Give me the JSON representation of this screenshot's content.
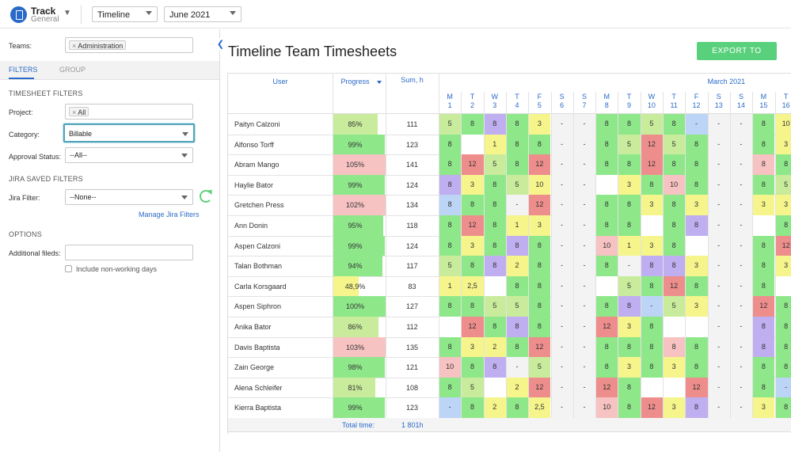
{
  "app": {
    "name": "Track",
    "sub": "General"
  },
  "topbar": {
    "view": "Timeline",
    "month": "June 2021"
  },
  "sidebar": {
    "teams_label": "Teams:",
    "teams_tag": "Administration",
    "tabs": [
      "FILTERS",
      "GROUP"
    ],
    "timesheet_filters": "TIMESHEET FILTERS",
    "project_label": "Project:",
    "project_tag": "All",
    "category_label": "Category:",
    "category_value": "Billable",
    "approval_label": "Approval Status:",
    "approval_value": "--All--",
    "jira_section": "JIRA SAVED FILTERS",
    "jira_label": "Jira Filter:",
    "jira_value": "--None--",
    "manage_link": "Manage Jira Filters",
    "options_section": "OPTIONS",
    "additional_label": "Additional fileds:",
    "include_label": "Include non-working days"
  },
  "main": {
    "title": "Timeline Team Timesheets",
    "export": "EXPORT TO EXCEL",
    "col_user": "User",
    "col_progress": "Progress",
    "col_sum": "Sum, h",
    "month_label": "March 2021",
    "total_label": "Total time:",
    "total_value": "1 801h",
    "days": [
      {
        "d": "M",
        "n": "1"
      },
      {
        "d": "T",
        "n": "2"
      },
      {
        "d": "W",
        "n": "3"
      },
      {
        "d": "T",
        "n": "4"
      },
      {
        "d": "F",
        "n": "5"
      },
      {
        "d": "S",
        "n": "6"
      },
      {
        "d": "S",
        "n": "7"
      },
      {
        "d": "M",
        "n": "8"
      },
      {
        "d": "T",
        "n": "9"
      },
      {
        "d": "W",
        "n": "10"
      },
      {
        "d": "T",
        "n": "11"
      },
      {
        "d": "F",
        "n": "12"
      },
      {
        "d": "S",
        "n": "13"
      },
      {
        "d": "S",
        "n": "14"
      },
      {
        "d": "M",
        "n": "15"
      },
      {
        "d": "T",
        "n": "16"
      }
    ],
    "colors": {
      "g": "#8ee88a",
      "lg": "#c8ec9c",
      "y": "#f5f58c",
      "p": "#bfaef0",
      "r": "#ee8e8c",
      "pk": "#f6c2c2",
      "b": "#bcd4f6",
      "w": "#ffffff",
      "e": "#f3f3f3"
    },
    "rows": [
      {
        "name": "Paityn Calzoni",
        "progress": "85%",
        "pc": "lg",
        "pf": 0.85,
        "sum": "111",
        "cells": [
          [
            "5",
            "lg"
          ],
          [
            "8",
            "g"
          ],
          [
            "8",
            "p"
          ],
          [
            "8",
            "g"
          ],
          [
            "3",
            "y"
          ],
          [
            "-",
            "e"
          ],
          [
            "-",
            "e"
          ],
          [
            "8",
            "g"
          ],
          [
            "8",
            "g"
          ],
          [
            "5",
            "lg"
          ],
          [
            "8",
            "g"
          ],
          [
            "-",
            "b"
          ],
          [
            "-",
            "e"
          ],
          [
            "-",
            "e"
          ],
          [
            "8",
            "g"
          ],
          [
            "10",
            "y"
          ]
        ]
      },
      {
        "name": "Alfonso Torff",
        "progress": "99%",
        "pc": "g",
        "pf": 0.99,
        "sum": "123",
        "cells": [
          [
            "8",
            "g"
          ],
          [
            "",
            "w"
          ],
          [
            "1",
            "y"
          ],
          [
            "8",
            "g"
          ],
          [
            "8",
            "g"
          ],
          [
            "-",
            "e"
          ],
          [
            "-",
            "e"
          ],
          [
            "8",
            "g"
          ],
          [
            "5",
            "lg"
          ],
          [
            "12",
            "r"
          ],
          [
            "5",
            "lg"
          ],
          [
            "8",
            "g"
          ],
          [
            "-",
            "e"
          ],
          [
            "-",
            "e"
          ],
          [
            "8",
            "g"
          ],
          [
            "3",
            "y"
          ]
        ]
      },
      {
        "name": "Abram Mango",
        "progress": "105%",
        "pc": "pk",
        "pf": 1,
        "sum": "141",
        "cells": [
          [
            "8",
            "g"
          ],
          [
            "12",
            "r"
          ],
          [
            "5",
            "lg"
          ],
          [
            "8",
            "g"
          ],
          [
            "12",
            "r"
          ],
          [
            "-",
            "e"
          ],
          [
            "-",
            "e"
          ],
          [
            "8",
            "g"
          ],
          [
            "8",
            "g"
          ],
          [
            "12",
            "r"
          ],
          [
            "8",
            "g"
          ],
          [
            "8",
            "g"
          ],
          [
            "-",
            "e"
          ],
          [
            "-",
            "e"
          ],
          [
            "8",
            "pk"
          ],
          [
            "8",
            "g"
          ]
        ]
      },
      {
        "name": "Haylie Bator",
        "progress": "99%",
        "pc": "g",
        "pf": 0.99,
        "sum": "124",
        "cells": [
          [
            "8",
            "p"
          ],
          [
            "3",
            "y"
          ],
          [
            "8",
            "g"
          ],
          [
            "5",
            "lg"
          ],
          [
            "10",
            "y"
          ],
          [
            "-",
            "e"
          ],
          [
            "-",
            "e"
          ],
          [
            "",
            "w"
          ],
          [
            "3",
            "y"
          ],
          [
            "8",
            "g"
          ],
          [
            "10",
            "pk"
          ],
          [
            "8",
            "g"
          ],
          [
            "-",
            "e"
          ],
          [
            "-",
            "e"
          ],
          [
            "8",
            "g"
          ],
          [
            "5",
            "lg"
          ]
        ]
      },
      {
        "name": "Gretchen Press",
        "progress": "102%",
        "pc": "pk",
        "pf": 1,
        "sum": "134",
        "cells": [
          [
            "8",
            "b"
          ],
          [
            "8",
            "g"
          ],
          [
            "8",
            "g"
          ],
          [
            "-",
            "e"
          ],
          [
            "12",
            "r"
          ],
          [
            "-",
            "e"
          ],
          [
            "-",
            "e"
          ],
          [
            "8",
            "g"
          ],
          [
            "8",
            "g"
          ],
          [
            "3",
            "y"
          ],
          [
            "8",
            "g"
          ],
          [
            "3",
            "y"
          ],
          [
            "-",
            "e"
          ],
          [
            "-",
            "e"
          ],
          [
            "3",
            "y"
          ],
          [
            "3",
            "y"
          ]
        ]
      },
      {
        "name": "Ann Donin",
        "progress": "95%",
        "pc": "g",
        "pf": 0.95,
        "sum": "118",
        "cells": [
          [
            "8",
            "g"
          ],
          [
            "12",
            "r"
          ],
          [
            "8",
            "g"
          ],
          [
            "1",
            "y"
          ],
          [
            "3",
            "y"
          ],
          [
            "-",
            "e"
          ],
          [
            "-",
            "e"
          ],
          [
            "8",
            "g"
          ],
          [
            "8",
            "g"
          ],
          [
            "",
            "w"
          ],
          [
            "8",
            "g"
          ],
          [
            "8",
            "p"
          ],
          [
            "-",
            "e"
          ],
          [
            "-",
            "e"
          ],
          [
            "",
            "w"
          ],
          [
            "8",
            "g"
          ]
        ]
      },
      {
        "name": "Aspen Calzoni",
        "progress": "99%",
        "pc": "g",
        "pf": 0.99,
        "sum": "124",
        "cells": [
          [
            "8",
            "g"
          ],
          [
            "3",
            "y"
          ],
          [
            "8",
            "g"
          ],
          [
            "8",
            "p"
          ],
          [
            "8",
            "g"
          ],
          [
            "-",
            "e"
          ],
          [
            "-",
            "e"
          ],
          [
            "10",
            "pk"
          ],
          [
            "1",
            "y"
          ],
          [
            "3",
            "y"
          ],
          [
            "8",
            "g"
          ],
          [
            "",
            "w"
          ],
          [
            "-",
            "e"
          ],
          [
            "-",
            "e"
          ],
          [
            "8",
            "g"
          ],
          [
            "12",
            "r"
          ]
        ]
      },
      {
        "name": "Talan Bothman",
        "progress": "94%",
        "pc": "g",
        "pf": 0.94,
        "sum": "117",
        "cells": [
          [
            "5",
            "lg"
          ],
          [
            "8",
            "g"
          ],
          [
            "8",
            "p"
          ],
          [
            "2",
            "y"
          ],
          [
            "8",
            "g"
          ],
          [
            "-",
            "e"
          ],
          [
            "-",
            "e"
          ],
          [
            "8",
            "g"
          ],
          [
            "-",
            "e"
          ],
          [
            "8",
            "p"
          ],
          [
            "8",
            "p"
          ],
          [
            "3",
            "y"
          ],
          [
            "-",
            "e"
          ],
          [
            "-",
            "e"
          ],
          [
            "8",
            "g"
          ],
          [
            "3",
            "y"
          ]
        ]
      },
      {
        "name": "Carla Korsgaard",
        "progress": "48,9%",
        "pc": "y",
        "pf": 0.49,
        "sum": "83",
        "cells": [
          [
            "1",
            "y"
          ],
          [
            "2,5",
            "y"
          ],
          [
            "",
            "w"
          ],
          [
            "8",
            "g"
          ],
          [
            "8",
            "g"
          ],
          [
            "-",
            "e"
          ],
          [
            "-",
            "e"
          ],
          [
            "",
            "w"
          ],
          [
            "5",
            "lg"
          ],
          [
            "8",
            "g"
          ],
          [
            "12",
            "r"
          ],
          [
            "8",
            "g"
          ],
          [
            "-",
            "e"
          ],
          [
            "-",
            "e"
          ],
          [
            "8",
            "g"
          ],
          [
            "",
            "w"
          ]
        ]
      },
      {
        "name": "Aspen Siphron",
        "progress": "100%",
        "pc": "g",
        "pf": 1,
        "sum": "127",
        "cells": [
          [
            "8",
            "g"
          ],
          [
            "8",
            "g"
          ],
          [
            "5",
            "lg"
          ],
          [
            "5",
            "lg"
          ],
          [
            "8",
            "g"
          ],
          [
            "-",
            "e"
          ],
          [
            "-",
            "e"
          ],
          [
            "8",
            "g"
          ],
          [
            "8",
            "p"
          ],
          [
            "-",
            "b"
          ],
          [
            "5",
            "lg"
          ],
          [
            "3",
            "y"
          ],
          [
            "-",
            "e"
          ],
          [
            "-",
            "e"
          ],
          [
            "12",
            "r"
          ],
          [
            "8",
            "g"
          ]
        ]
      },
      {
        "name": "Anika Bator",
        "progress": "86%",
        "pc": "lg",
        "pf": 0.86,
        "sum": "112",
        "cells": [
          [
            "",
            "w"
          ],
          [
            "12",
            "r"
          ],
          [
            "8",
            "g"
          ],
          [
            "8",
            "p"
          ],
          [
            "8",
            "g"
          ],
          [
            "-",
            "e"
          ],
          [
            "-",
            "e"
          ],
          [
            "12",
            "r"
          ],
          [
            "3",
            "y"
          ],
          [
            "8",
            "g"
          ],
          [
            "",
            "w"
          ],
          [
            "",
            "w"
          ],
          [
            "-",
            "e"
          ],
          [
            "-",
            "e"
          ],
          [
            "8",
            "p"
          ],
          [
            "8",
            "g"
          ]
        ]
      },
      {
        "name": "Davis Baptista",
        "progress": "103%",
        "pc": "pk",
        "pf": 1,
        "sum": "135",
        "cells": [
          [
            "8",
            "g"
          ],
          [
            "3",
            "y"
          ],
          [
            "2",
            "y"
          ],
          [
            "8",
            "g"
          ],
          [
            "12",
            "r"
          ],
          [
            "-",
            "e"
          ],
          [
            "-",
            "e"
          ],
          [
            "8",
            "g"
          ],
          [
            "8",
            "g"
          ],
          [
            "8",
            "g"
          ],
          [
            "8",
            "pk"
          ],
          [
            "8",
            "g"
          ],
          [
            "-",
            "e"
          ],
          [
            "-",
            "e"
          ],
          [
            "8",
            "p"
          ],
          [
            "8",
            "g"
          ]
        ]
      },
      {
        "name": "Zain George",
        "progress": "98%",
        "pc": "g",
        "pf": 0.98,
        "sum": "121",
        "cells": [
          [
            "10",
            "pk"
          ],
          [
            "8",
            "g"
          ],
          [
            "8",
            "p"
          ],
          [
            "-",
            "e"
          ],
          [
            "5",
            "lg"
          ],
          [
            "-",
            "e"
          ],
          [
            "-",
            "e"
          ],
          [
            "8",
            "g"
          ],
          [
            "3",
            "y"
          ],
          [
            "8",
            "g"
          ],
          [
            "3",
            "y"
          ],
          [
            "8",
            "g"
          ],
          [
            "-",
            "e"
          ],
          [
            "-",
            "e"
          ],
          [
            "8",
            "g"
          ],
          [
            "8",
            "g"
          ]
        ]
      },
      {
        "name": "Alena Schleifer",
        "progress": "81%",
        "pc": "lg",
        "pf": 0.81,
        "sum": "108",
        "cells": [
          [
            "8",
            "g"
          ],
          [
            "5",
            "lg"
          ],
          [
            "",
            "w"
          ],
          [
            "2",
            "y"
          ],
          [
            "12",
            "r"
          ],
          [
            "-",
            "e"
          ],
          [
            "-",
            "e"
          ],
          [
            "12",
            "r"
          ],
          [
            "8",
            "g"
          ],
          [
            "",
            "w"
          ],
          [
            "",
            "w"
          ],
          [
            "12",
            "r"
          ],
          [
            "-",
            "e"
          ],
          [
            "-",
            "e"
          ],
          [
            "8",
            "g"
          ],
          [
            "-",
            "b"
          ]
        ]
      },
      {
        "name": "Kierra Baptista",
        "progress": "99%",
        "pc": "g",
        "pf": 0.99,
        "sum": "123",
        "cells": [
          [
            "-",
            "b"
          ],
          [
            "8",
            "g"
          ],
          [
            "2",
            "y"
          ],
          [
            "8",
            "g"
          ],
          [
            "2,5",
            "y"
          ],
          [
            "-",
            "e"
          ],
          [
            "-",
            "e"
          ],
          [
            "10",
            "pk"
          ],
          [
            "8",
            "g"
          ],
          [
            "12",
            "r"
          ],
          [
            "3",
            "y"
          ],
          [
            "8",
            "p"
          ],
          [
            "-",
            "e"
          ],
          [
            "-",
            "e"
          ],
          [
            "3",
            "y"
          ],
          [
            "8",
            "g"
          ]
        ]
      }
    ]
  }
}
